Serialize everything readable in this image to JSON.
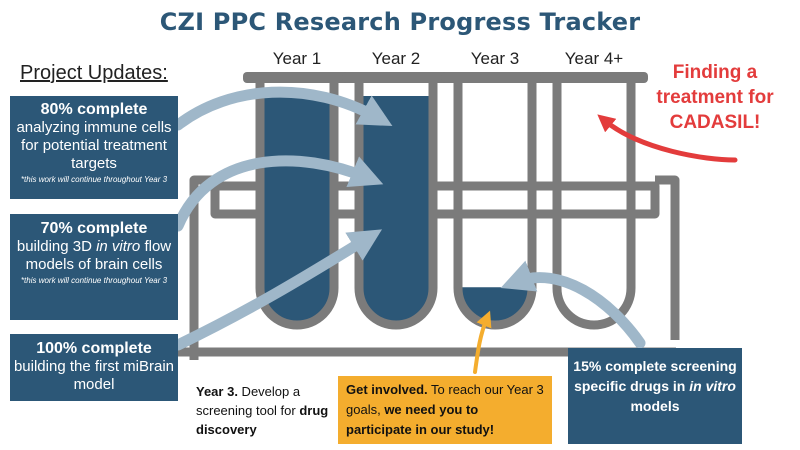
{
  "title": "CZI PPC Research Progress Tracker",
  "years": [
    "Year 1",
    "Year 2",
    "Year 3",
    "Year 4+"
  ],
  "tube_fill_fractions": [
    1.0,
    1.0,
    0.15,
    0.0
  ],
  "project_updates_heading": "Project Updates:",
  "updates": [
    {
      "headline": "80% complete",
      "description": "analyzing immune cells for potential treatment targets",
      "note": "*this work will continue throughout Year 3"
    },
    {
      "headline": "70% complete",
      "description_before": "building 3D ",
      "description_italic": "in vitro",
      "description_after": " flow models of brain cells",
      "note": "*this work will continue throughout Year 3"
    },
    {
      "headline": "100% complete",
      "description": "building the first miBrain model"
    }
  ],
  "finding": "Finding a treatment for CADASIL!",
  "year3_goal": {
    "lead": "Year 3.",
    "text": " Develop a screening tool for ",
    "bold_end": "drug discovery"
  },
  "get_involved": {
    "lead": "Get involved.",
    "text": " To reach our Year 3 goals, ",
    "bold_end": "we need you to participate in our study!"
  },
  "screening": {
    "before": "15% complete screening specific drugs in ",
    "italic": "in vitro",
    "after": " models"
  },
  "colors": {
    "navy": "#2c5777",
    "rack_gray": "#7b7b7b",
    "arrow_light_blue": "#9fb7c9",
    "arrow_red": "#e33c3c",
    "arrow_orange": "#f4ad2e",
    "title_color": "#2c5777"
  }
}
